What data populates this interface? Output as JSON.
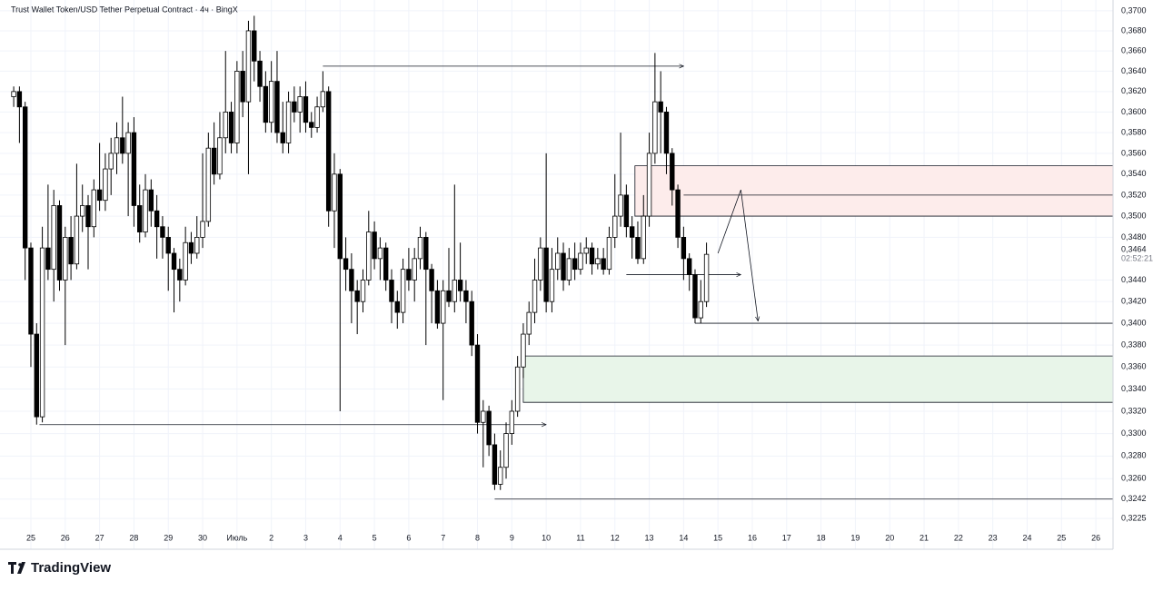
{
  "chart_data": {
    "type": "candlestick",
    "title": "Trust Wallet Token/USD Tether Perpetual Contract · 4ч · BingX",
    "brand": "TradingView",
    "log": true,
    "grid": true,
    "up_color": "#ffffff",
    "down_color": "#000000",
    "ylim": [
      0.3218,
      0.3709
    ],
    "yticks": [
      {
        "value": 0.37,
        "label": "0,3700"
      },
      {
        "value": 0.368,
        "label": "0,3680"
      },
      {
        "value": 0.366,
        "label": "0,3660"
      },
      {
        "value": 0.364,
        "label": "0,3640"
      },
      {
        "value": 0.362,
        "label": "0,3620"
      },
      {
        "value": 0.36,
        "label": "0,3600"
      },
      {
        "value": 0.358,
        "label": "0,3580"
      },
      {
        "value": 0.356,
        "label": "0,3560"
      },
      {
        "value": 0.354,
        "label": "0,3540"
      },
      {
        "value": 0.352,
        "label": "0,3520"
      },
      {
        "value": 0.35,
        "label": "0,3500"
      },
      {
        "value": 0.348,
        "label": "0,3480"
      },
      {
        "value": 0.344,
        "label": "0,3440"
      },
      {
        "value": 0.342,
        "label": "0,3420"
      },
      {
        "value": 0.34,
        "label": "0,3400"
      },
      {
        "value": 0.338,
        "label": "0,3380"
      },
      {
        "value": 0.336,
        "label": "0,3360"
      },
      {
        "value": 0.334,
        "label": "0,3340"
      },
      {
        "value": 0.332,
        "label": "0,3320"
      },
      {
        "value": 0.33,
        "label": "0,3300"
      },
      {
        "value": 0.328,
        "label": "0,3280"
      },
      {
        "value": 0.326,
        "label": "0,3260"
      },
      {
        "value": 0.3242,
        "label": "0,3242"
      },
      {
        "value": 0.3225,
        "label": "0,3225"
      }
    ],
    "last_price": {
      "value": 0.3464,
      "label": "0,3464"
    },
    "countdown": "02:52:21",
    "xlim": [
      -1.6,
      192
    ],
    "xticks": [
      {
        "value": 3,
        "label": "25"
      },
      {
        "value": 9,
        "label": "26"
      },
      {
        "value": 15,
        "label": "27"
      },
      {
        "value": 21,
        "label": "28"
      },
      {
        "value": 27,
        "label": "29"
      },
      {
        "value": 33,
        "label": "30"
      },
      {
        "value": 39,
        "label": "Июль"
      },
      {
        "value": 45,
        "label": "2"
      },
      {
        "value": 51,
        "label": "3"
      },
      {
        "value": 57,
        "label": "4"
      },
      {
        "value": 63,
        "label": "5"
      },
      {
        "value": 69,
        "label": "6"
      },
      {
        "value": 75,
        "label": "7"
      },
      {
        "value": 81,
        "label": "8"
      },
      {
        "value": 87,
        "label": "9"
      },
      {
        "value": 93,
        "label": "10"
      },
      {
        "value": 99,
        "label": "11"
      },
      {
        "value": 105,
        "label": "12"
      },
      {
        "value": 111,
        "label": "13"
      },
      {
        "value": 117,
        "label": "14"
      },
      {
        "value": 123,
        "label": "15"
      },
      {
        "value": 129,
        "label": "16"
      },
      {
        "value": 135,
        "label": "17"
      },
      {
        "value": 141,
        "label": "18"
      },
      {
        "value": 147,
        "label": "19"
      },
      {
        "value": 153,
        "label": "20"
      },
      {
        "value": 159,
        "label": "21"
      },
      {
        "value": 165,
        "label": "22"
      },
      {
        "value": 171,
        "label": "23"
      },
      {
        "value": 177,
        "label": "24"
      },
      {
        "value": 183,
        "label": "25"
      },
      {
        "value": 189,
        "label": "26"
      }
    ],
    "candles": [
      [
        0.3615,
        0.3625,
        0.3605,
        0.362
      ],
      [
        0.362,
        0.3625,
        0.357,
        0.3605
      ],
      [
        0.3605,
        0.361,
        0.344,
        0.347
      ],
      [
        0.347,
        0.3475,
        0.336,
        0.339
      ],
      [
        0.339,
        0.34,
        0.3308,
        0.3315
      ],
      [
        0.3315,
        0.349,
        0.331,
        0.347
      ],
      [
        0.347,
        0.353,
        0.344,
        0.345
      ],
      [
        0.345,
        0.3525,
        0.342,
        0.351
      ],
      [
        0.351,
        0.3515,
        0.343,
        0.344
      ],
      [
        0.344,
        0.349,
        0.338,
        0.348
      ],
      [
        0.348,
        0.35,
        0.344,
        0.3455
      ],
      [
        0.3455,
        0.355,
        0.345,
        0.35
      ],
      [
        0.35,
        0.353,
        0.3485,
        0.351
      ],
      [
        0.351,
        0.352,
        0.345,
        0.349
      ],
      [
        0.349,
        0.3535,
        0.348,
        0.3525
      ],
      [
        0.3525,
        0.357,
        0.3505,
        0.3515
      ],
      [
        0.3515,
        0.356,
        0.3505,
        0.3545
      ],
      [
        0.3545,
        0.3575,
        0.352,
        0.356
      ],
      [
        0.356,
        0.359,
        0.354,
        0.3575
      ],
      [
        0.3575,
        0.3615,
        0.355,
        0.356
      ],
      [
        0.356,
        0.359,
        0.35,
        0.358
      ],
      [
        0.358,
        0.3595,
        0.349,
        0.351
      ],
      [
        0.351,
        0.353,
        0.3475,
        0.3485
      ],
      [
        0.3485,
        0.354,
        0.348,
        0.3525
      ],
      [
        0.3525,
        0.3535,
        0.349,
        0.3505
      ],
      [
        0.3505,
        0.352,
        0.346,
        0.349
      ],
      [
        0.349,
        0.35,
        0.346,
        0.348
      ],
      [
        0.348,
        0.349,
        0.343,
        0.3465
      ],
      [
        0.3465,
        0.347,
        0.341,
        0.345
      ],
      [
        0.345,
        0.346,
        0.342,
        0.344
      ],
      [
        0.344,
        0.349,
        0.3435,
        0.3475
      ],
      [
        0.3475,
        0.3485,
        0.3455,
        0.3465
      ],
      [
        0.3465,
        0.35,
        0.346,
        0.348
      ],
      [
        0.348,
        0.356,
        0.347,
        0.3495
      ],
      [
        0.3495,
        0.358,
        0.349,
        0.3565
      ],
      [
        0.3565,
        0.359,
        0.353,
        0.354
      ],
      [
        0.354,
        0.36,
        0.3535,
        0.3575
      ],
      [
        0.3575,
        0.366,
        0.356,
        0.36
      ],
      [
        0.36,
        0.361,
        0.356,
        0.357
      ],
      [
        0.357,
        0.365,
        0.356,
        0.364
      ],
      [
        0.364,
        0.366,
        0.3595,
        0.361
      ],
      [
        0.361,
        0.369,
        0.354,
        0.368
      ],
      [
        0.368,
        0.3695,
        0.363,
        0.365
      ],
      [
        0.365,
        0.366,
        0.361,
        0.3625
      ],
      [
        0.3625,
        0.364,
        0.358,
        0.359
      ],
      [
        0.359,
        0.365,
        0.358,
        0.363
      ],
      [
        0.363,
        0.366,
        0.357,
        0.358
      ],
      [
        0.358,
        0.361,
        0.356,
        0.357
      ],
      [
        0.357,
        0.362,
        0.356,
        0.361
      ],
      [
        0.361,
        0.3625,
        0.359,
        0.36
      ],
      [
        0.36,
        0.3625,
        0.358,
        0.3615
      ],
      [
        0.3615,
        0.363,
        0.358,
        0.359
      ],
      [
        0.359,
        0.36,
        0.3575,
        0.3585
      ],
      [
        0.3585,
        0.3615,
        0.358,
        0.3605
      ],
      [
        0.3605,
        0.364,
        0.36,
        0.362
      ],
      [
        0.362,
        0.3625,
        0.349,
        0.3505
      ],
      [
        0.3505,
        0.356,
        0.347,
        0.354
      ],
      [
        0.354,
        0.3545,
        0.332,
        0.346
      ],
      [
        0.346,
        0.348,
        0.343,
        0.345
      ],
      [
        0.345,
        0.3465,
        0.34,
        0.343
      ],
      [
        0.343,
        0.344,
        0.339,
        0.342
      ],
      [
        0.342,
        0.345,
        0.341,
        0.344
      ],
      [
        0.344,
        0.3505,
        0.3435,
        0.3485
      ],
      [
        0.3485,
        0.3495,
        0.345,
        0.346
      ],
      [
        0.346,
        0.348,
        0.344,
        0.347
      ],
      [
        0.347,
        0.3475,
        0.343,
        0.344
      ],
      [
        0.344,
        0.345,
        0.34,
        0.342
      ],
      [
        0.342,
        0.343,
        0.3395,
        0.341
      ],
      [
        0.341,
        0.346,
        0.34,
        0.345
      ],
      [
        0.345,
        0.347,
        0.343,
        0.344
      ],
      [
        0.344,
        0.347,
        0.342,
        0.346
      ],
      [
        0.346,
        0.349,
        0.345,
        0.348
      ],
      [
        0.348,
        0.3485,
        0.338,
        0.345
      ],
      [
        0.345,
        0.3455,
        0.34,
        0.343
      ],
      [
        0.343,
        0.344,
        0.3395,
        0.34
      ],
      [
        0.34,
        0.344,
        0.333,
        0.343
      ],
      [
        0.343,
        0.347,
        0.3415,
        0.342
      ],
      [
        0.342,
        0.353,
        0.341,
        0.344
      ],
      [
        0.344,
        0.3475,
        0.342,
        0.343
      ],
      [
        0.343,
        0.344,
        0.34,
        0.342
      ],
      [
        0.342,
        0.343,
        0.337,
        0.338
      ],
      [
        0.338,
        0.339,
        0.33,
        0.331
      ],
      [
        0.331,
        0.333,
        0.327,
        0.332
      ],
      [
        0.332,
        0.3325,
        0.328,
        0.329
      ],
      [
        0.329,
        0.33,
        0.325,
        0.3255
      ],
      [
        0.3255,
        0.3285,
        0.325,
        0.327
      ],
      [
        0.327,
        0.331,
        0.326,
        0.33
      ],
      [
        0.33,
        0.333,
        0.329,
        0.332
      ],
      [
        0.332,
        0.337,
        0.3315,
        0.336
      ],
      [
        0.336,
        0.34,
        0.335,
        0.339
      ],
      [
        0.339,
        0.342,
        0.338,
        0.341
      ],
      [
        0.341,
        0.346,
        0.34,
        0.344
      ],
      [
        0.344,
        0.348,
        0.343,
        0.347
      ],
      [
        0.347,
        0.356,
        0.341,
        0.342
      ],
      [
        0.342,
        0.347,
        0.341,
        0.345
      ],
      [
        0.345,
        0.348,
        0.344,
        0.3465
      ],
      [
        0.3465,
        0.3475,
        0.343,
        0.344
      ],
      [
        0.344,
        0.347,
        0.3435,
        0.346
      ],
      [
        0.346,
        0.3475,
        0.344,
        0.345
      ],
      [
        0.345,
        0.3475,
        0.3445,
        0.3465
      ],
      [
        0.3465,
        0.348,
        0.3455,
        0.347
      ],
      [
        0.347,
        0.3475,
        0.3445,
        0.3455
      ],
      [
        0.3455,
        0.347,
        0.345,
        0.346
      ],
      [
        0.346,
        0.347,
        0.3445,
        0.345
      ],
      [
        0.345,
        0.349,
        0.3445,
        0.348
      ],
      [
        0.348,
        0.354,
        0.347,
        0.35
      ],
      [
        0.35,
        0.358,
        0.349,
        0.352
      ],
      [
        0.352,
        0.353,
        0.348,
        0.349
      ],
      [
        0.349,
        0.35,
        0.346,
        0.348
      ],
      [
        0.348,
        0.3495,
        0.3455,
        0.346
      ],
      [
        0.346,
        0.352,
        0.3455,
        0.35
      ],
      [
        0.35,
        0.358,
        0.349,
        0.356
      ],
      [
        0.356,
        0.3658,
        0.355,
        0.361
      ],
      [
        0.361,
        0.364,
        0.356,
        0.36
      ],
      [
        0.36,
        0.3605,
        0.354,
        0.356
      ],
      [
        0.356,
        0.3565,
        0.351,
        0.3525
      ],
      [
        0.3525,
        0.353,
        0.347,
        0.348
      ],
      [
        0.348,
        0.349,
        0.344,
        0.346
      ],
      [
        0.346,
        0.3465,
        0.343,
        0.3445
      ],
      [
        0.3445,
        0.345,
        0.34,
        0.3405
      ],
      [
        0.3405,
        0.344,
        0.34,
        0.342
      ],
      [
        0.342,
        0.3475,
        0.3415,
        0.3464
      ]
    ],
    "zones": [
      {
        "x": [
          108.5,
          192
        ],
        "y": [
          0.35,
          0.3548
        ],
        "color": "#fdeceb"
      },
      {
        "x": [
          89,
          192
        ],
        "y": [
          0.3328,
          0.337
        ],
        "color": "#e8f5e9"
      }
    ],
    "lines": [
      {
        "x": [
          84,
          192
        ],
        "y": 0.3242
      },
      {
        "x": [
          119,
          192
        ],
        "y": 0.34
      },
      {
        "x": [
          117,
          192
        ],
        "y": 0.352
      }
    ],
    "arrows": [
      {
        "x": [
          4.5,
          93
        ],
        "y": 0.3308
      },
      {
        "x": [
          54,
          117
        ],
        "y": 0.3645
      },
      {
        "x": [
          107,
          127
        ],
        "y": 0.3445
      }
    ],
    "projection": {
      "x": [
        123,
        127,
        130
      ],
      "y": [
        0.3465,
        0.3525,
        0.3402
      ]
    }
  }
}
